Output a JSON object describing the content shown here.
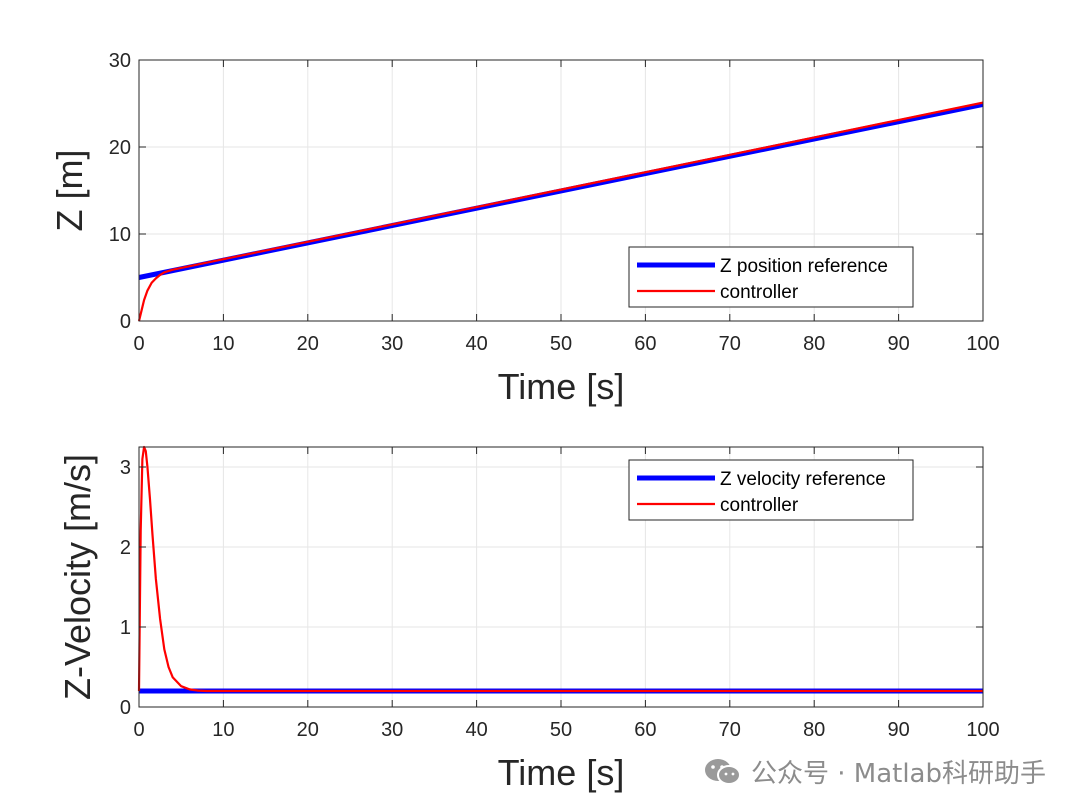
{
  "chart_data": [
    {
      "type": "line",
      "xlabel": "Time [s]",
      "ylabel": "Z [m]",
      "xlim": [
        0,
        100
      ],
      "ylim": [
        0,
        30
      ],
      "xticks": [
        "0",
        "10",
        "20",
        "30",
        "40",
        "50",
        "60",
        "70",
        "80",
        "90",
        "100"
      ],
      "yticks": [
        "0",
        "10",
        "20",
        "30"
      ],
      "grid": true,
      "legend_position": "bottom-right",
      "series": [
        {
          "name": "Z position reference",
          "color": "#0000ff",
          "x": [
            0,
            100
          ],
          "y": [
            5.0,
            24.9
          ]
        },
        {
          "name": "controller",
          "color": "#ff0000",
          "x": [
            0,
            0.3,
            0.6,
            1,
            1.5,
            2,
            2.5,
            3,
            4,
            5,
            10,
            20,
            50,
            100
          ],
          "y": [
            0,
            1.2,
            2.4,
            3.5,
            4.4,
            4.9,
            5.3,
            5.6,
            5.9,
            6.1,
            7.1,
            9.1,
            15.1,
            25.1
          ]
        }
      ]
    },
    {
      "type": "line",
      "xlabel": "Time [s]",
      "ylabel": "Z-Velocity [m/s]",
      "xlim": [
        0,
        100
      ],
      "ylim": [
        0,
        3.25
      ],
      "xticks": [
        "0",
        "10",
        "20",
        "30",
        "40",
        "50",
        "60",
        "70",
        "80",
        "90",
        "100"
      ],
      "yticks": [
        "0",
        "1",
        "2",
        "3"
      ],
      "grid": true,
      "legend_position": "top-right",
      "series": [
        {
          "name": "Z velocity reference",
          "color": "#0000ff",
          "x": [
            0,
            100
          ],
          "y": [
            0.2,
            0.2
          ]
        },
        {
          "name": "controller",
          "color": "#ff0000",
          "x": [
            0,
            0.2,
            0.4,
            0.6,
            0.8,
            1.0,
            1.3,
            1.6,
            2.0,
            2.5,
            3.0,
            3.5,
            4.0,
            5.0,
            6.0,
            7.0,
            8.0,
            100
          ],
          "y": [
            0.2,
            2.2,
            3.1,
            3.25,
            3.2,
            3.0,
            2.6,
            2.15,
            1.6,
            1.1,
            0.72,
            0.5,
            0.37,
            0.26,
            0.22,
            0.205,
            0.2,
            0.2
          ]
        }
      ]
    }
  ],
  "watermark": {
    "text": "公众号 · Matlab科研助手",
    "icon": "wechat-icon"
  }
}
